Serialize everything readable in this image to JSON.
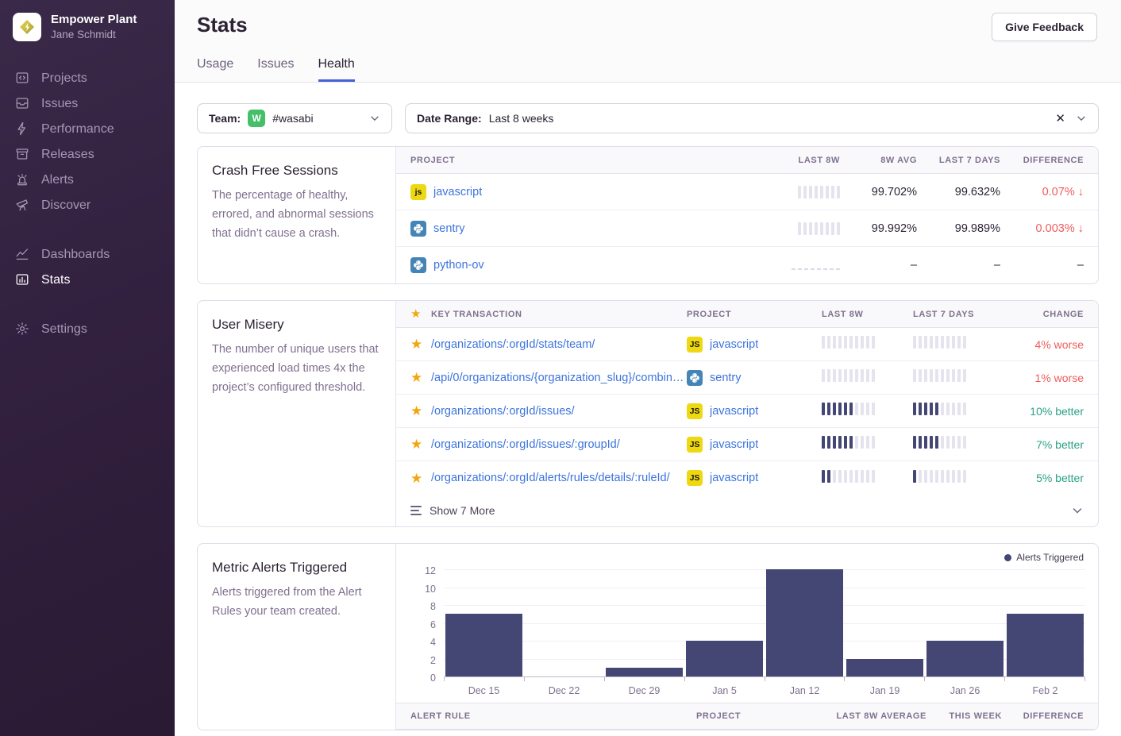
{
  "sidebar": {
    "org_name": "Empower Plant",
    "user_name": "Jane Schmidt",
    "items": [
      {
        "label": "Projects",
        "icon": "projects-icon"
      },
      {
        "label": "Issues",
        "icon": "issues-icon"
      },
      {
        "label": "Performance",
        "icon": "performance-icon"
      },
      {
        "label": "Releases",
        "icon": "releases-icon"
      },
      {
        "label": "Alerts",
        "icon": "alerts-icon"
      },
      {
        "label": "Discover",
        "icon": "discover-icon"
      }
    ],
    "items_secondary": [
      {
        "label": "Dashboards",
        "icon": "dashboards-icon"
      },
      {
        "label": "Stats",
        "icon": "stats-icon",
        "active": true
      }
    ],
    "items_tertiary": [
      {
        "label": "Settings",
        "icon": "settings-icon"
      }
    ]
  },
  "header": {
    "title": "Stats",
    "feedback_button": "Give Feedback"
  },
  "tabs": [
    {
      "label": "Usage"
    },
    {
      "label": "Issues"
    },
    {
      "label": "Health",
      "active": true
    }
  ],
  "filters": {
    "team_label": "Team:",
    "team_badge": "W",
    "team_value": "#wasabi",
    "date_label": "Date Range:",
    "date_value": "Last 8 weeks"
  },
  "icons": {
    "arrow_down": "↓",
    "star": "★",
    "clear": "✕",
    "chevron_down": "⌄"
  },
  "colors": {
    "link_blue": "#3c74dd",
    "negative_red": "#f05c5c",
    "positive_green": "#2ba185",
    "bar_dark": "#444674",
    "bar_light": "#e5e3ee",
    "star_gold": "#f2a60b",
    "team_badge_green": "#45bf69",
    "js_badge_yellow": "#edd812",
    "python_badge_blue": "#4584b6",
    "tab_underline": "#4661d6",
    "sidebar_purple": "#32203f"
  },
  "crash_free": {
    "title": "Crash Free Sessions",
    "description": "The percentage of healthy, errored, and abnormal sessions that didn’t cause a crash.",
    "columns": {
      "project": "Project",
      "last_8w": "Last 8W",
      "avg_8w": "8W Avg",
      "last_7d": "Last 7 Days",
      "difference": "Difference"
    },
    "rows": [
      {
        "project": "javascript",
        "platform": "js",
        "spark_8w": {
          "bars": 8,
          "dark": 0
        },
        "avg_8w": "99.702%",
        "last_7d": "99.632%",
        "difference": "0.07%",
        "trend": "down"
      },
      {
        "project": "sentry",
        "platform": "python",
        "spark_8w": {
          "bars": 8,
          "dark": 0
        },
        "avg_8w": "99.992%",
        "last_7d": "99.989%",
        "difference": "0.003%",
        "trend": "down"
      },
      {
        "project": "python-ov",
        "platform": "python",
        "spark_8w": {
          "bars": 8,
          "dashed": true
        },
        "avg_8w": "–",
        "last_7d": "–",
        "difference": "–",
        "trend": "none"
      }
    ]
  },
  "user_misery": {
    "title": "User Misery",
    "description": "The number of unique users that experienced load times 4x the project’s configured threshold.",
    "columns": {
      "key_transaction": "Key Transaction",
      "project": "Project",
      "last_8w": "Last 8W",
      "last_7d": "Last 7 Days",
      "change": "Change"
    },
    "rows": [
      {
        "transaction": "/organizations/:orgId/stats/team/",
        "project": "javascript",
        "platform": "js",
        "spark_8w": {
          "bars": 10,
          "dark": 0
        },
        "spark_7d": {
          "bars": 10,
          "dark": 0
        },
        "change": "4% worse",
        "direction": "worse"
      },
      {
        "transaction": "/api/0/organizations/{organization_slug}/combine…",
        "project": "sentry",
        "platform": "python",
        "spark_8w": {
          "bars": 10,
          "dark": 0
        },
        "spark_7d": {
          "bars": 10,
          "dark": 0
        },
        "change": "1% worse",
        "direction": "worse"
      },
      {
        "transaction": "/organizations/:orgId/issues/",
        "project": "javascript",
        "platform": "js",
        "spark_8w": {
          "bars": 10,
          "dark": 6
        },
        "spark_7d": {
          "bars": 10,
          "dark": 5
        },
        "change": "10% better",
        "direction": "better"
      },
      {
        "transaction": "/organizations/:orgId/issues/:groupId/",
        "project": "javascript",
        "platform": "js",
        "spark_8w": {
          "bars": 10,
          "dark": 6
        },
        "spark_7d": {
          "bars": 10,
          "dark": 5
        },
        "change": "7% better",
        "direction": "better"
      },
      {
        "transaction": "/organizations/:orgId/alerts/rules/details/:ruleId/",
        "project": "javascript",
        "platform": "js",
        "spark_8w": {
          "bars": 10,
          "dark": 2
        },
        "spark_7d": {
          "bars": 10,
          "dark": 1
        },
        "change": "5% better",
        "direction": "better"
      }
    ],
    "show_more": "Show 7 More"
  },
  "metric_alerts": {
    "title": "Metric Alerts Triggered",
    "description": "Alerts triggered from the Alert Rules your team created.",
    "chart_data": {
      "type": "bar",
      "categories": [
        "Dec 15",
        "Dec 22",
        "Dec 29",
        "Jan 5",
        "Jan 12",
        "Jan 19",
        "Jan 26",
        "Feb 2"
      ],
      "values": [
        7,
        0,
        1,
        4,
        12,
        2,
        4,
        7
      ],
      "title": "Metric Alerts Triggered",
      "xlabel": "",
      "ylabel": "",
      "ylim": [
        0,
        12
      ],
      "yticks": [
        0,
        2,
        4,
        6,
        8,
        10,
        12
      ],
      "grid": true,
      "legend": [
        "Alerts Triggered"
      ],
      "legend_position": "top-right",
      "bar_color": "#444674"
    },
    "table_columns": {
      "alert_rule": "Alert Rule",
      "project": "Project",
      "last_8w_average": "Last 8W Average",
      "this_week": "This Week",
      "difference": "Difference"
    }
  }
}
